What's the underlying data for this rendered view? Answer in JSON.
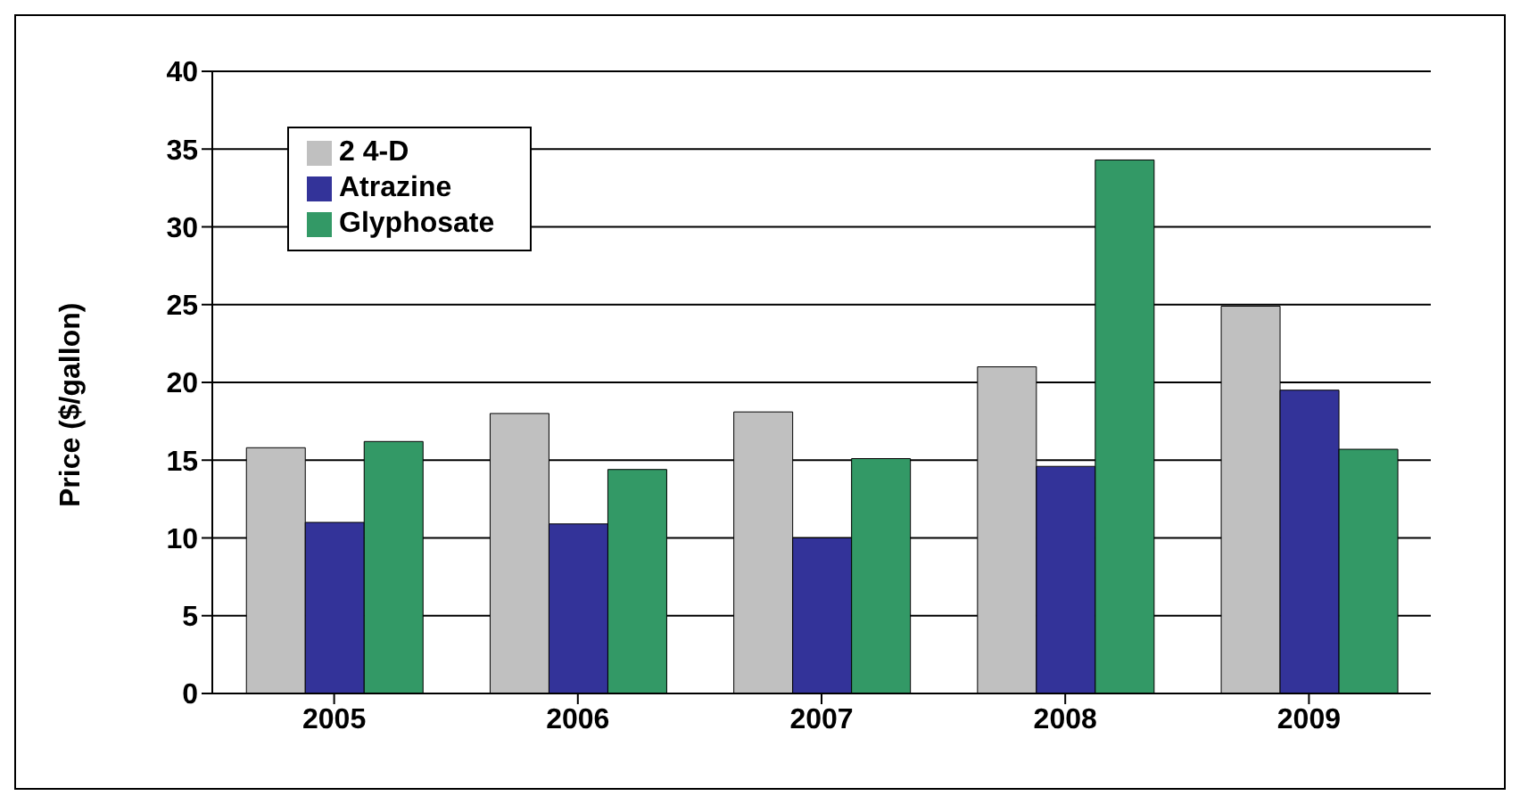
{
  "chart_data": {
    "type": "bar",
    "ylabel": "Price ($/gallon)",
    "categories": [
      "2005",
      "2006",
      "2007",
      "2008",
      "2009"
    ],
    "series": [
      {
        "name": "2 4-D",
        "color": "#c0c0c0",
        "values": [
          15.8,
          18.0,
          18.1,
          21.0,
          24.9
        ]
      },
      {
        "name": "Atrazine",
        "color": "#333399",
        "values": [
          11.0,
          10.9,
          10.0,
          14.6,
          19.5
        ]
      },
      {
        "name": "Glyphosate",
        "color": "#339966",
        "values": [
          16.2,
          14.4,
          15.1,
          34.3,
          15.7
        ]
      }
    ],
    "ylim": [
      0,
      40
    ],
    "yticks": [
      0,
      5,
      10,
      15,
      20,
      25,
      30,
      35,
      40
    ],
    "grid": "y",
    "legend": "top left"
  }
}
